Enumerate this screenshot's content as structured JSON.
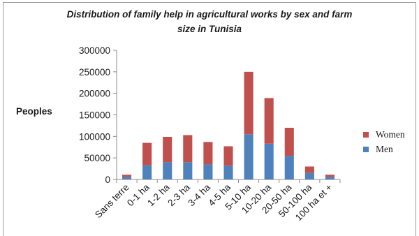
{
  "chart_data": {
    "type": "bar",
    "stacked": true,
    "title_line1": "Distribution of family help in agricultural  works by sex and farm",
    "title_line2": "size in Tunisia",
    "ylabel": "Peoples",
    "ylim": [
      0,
      300000
    ],
    "yticks": [
      "0",
      "50000",
      "100000",
      "150000",
      "200000",
      "250000",
      "300000"
    ],
    "categories": [
      "Sans terre",
      "0-1 ha",
      "1-2 ha",
      "2-3 ha",
      "3-4 ha",
      "4-5 ha",
      "5-10 ha",
      "10-20 ha",
      "20-50 ha",
      "50-100 ha",
      "100 ha et +"
    ],
    "series": [
      {
        "name": "Men",
        "color": "#4f81bd",
        "values": [
          6000,
          33000,
          40000,
          40000,
          35000,
          32000,
          105000,
          83000,
          55000,
          15000,
          6000
        ]
      },
      {
        "name": "Women",
        "color": "#c0504d",
        "values": [
          5000,
          52000,
          59000,
          63000,
          52000,
          45000,
          145000,
          106000,
          65000,
          15000,
          5000
        ]
      }
    ],
    "legend_position": "right",
    "grid": false
  }
}
